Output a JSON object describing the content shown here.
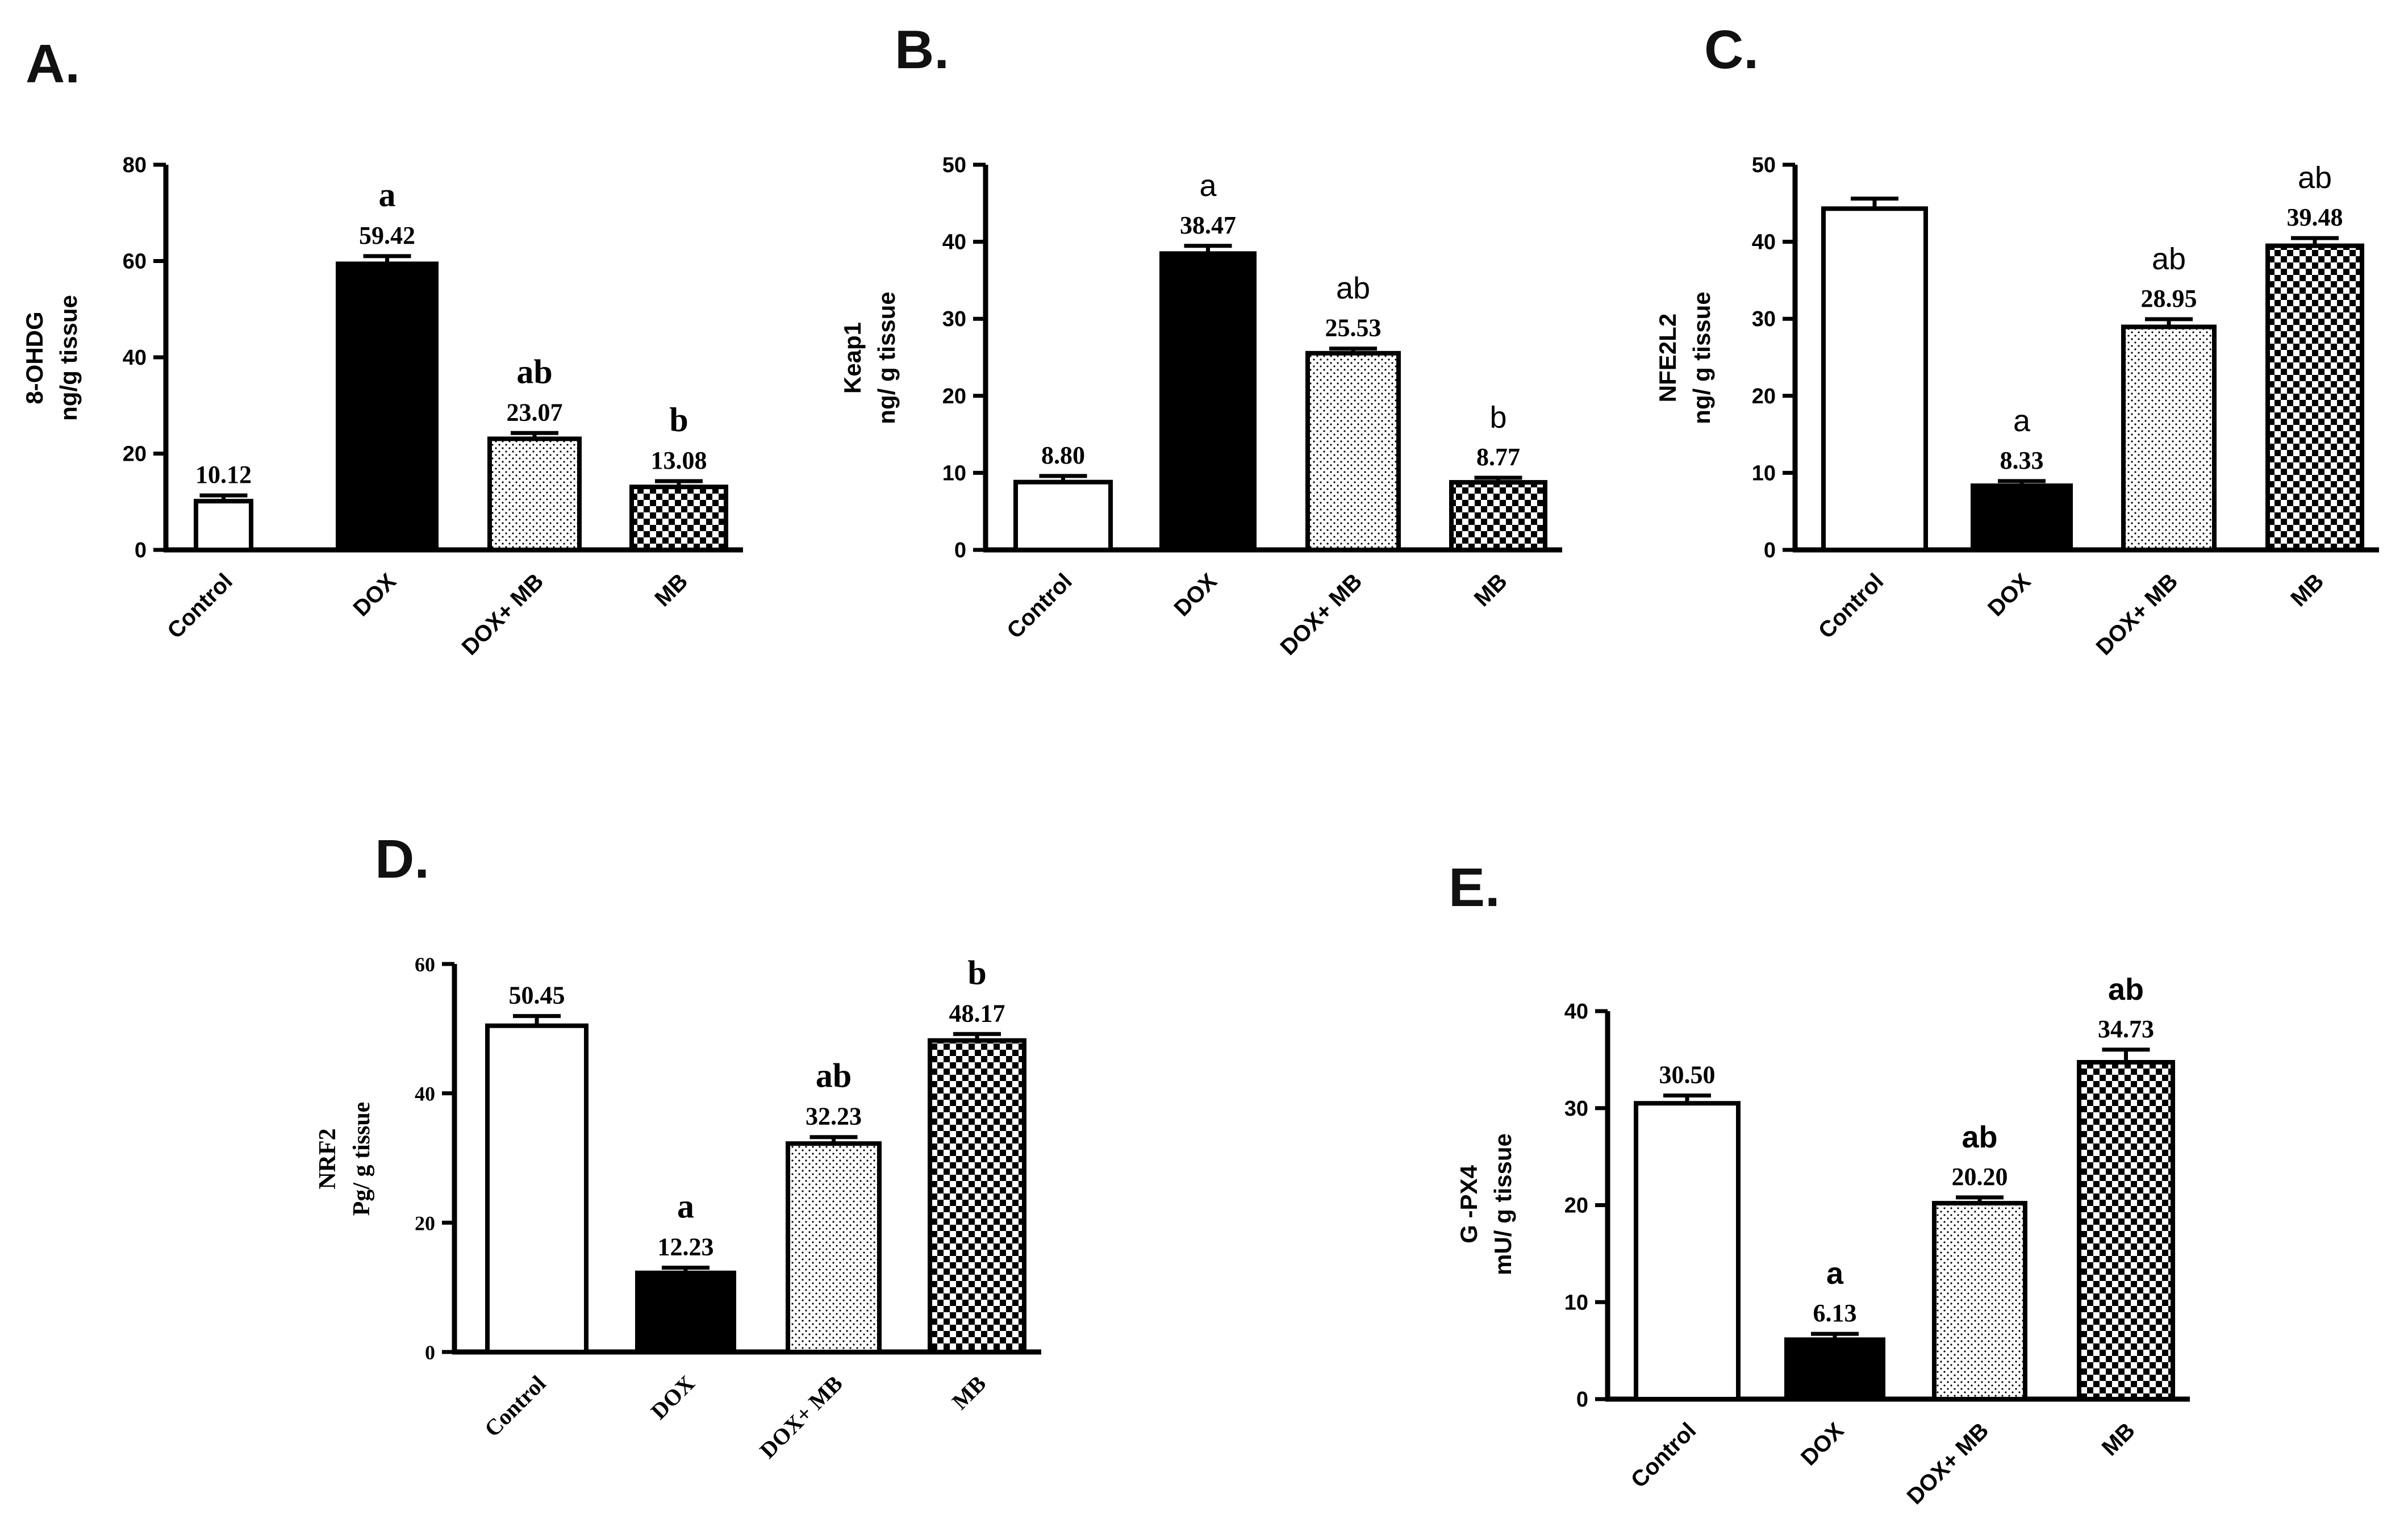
{
  "figure": {
    "colors": {
      "ink": "#000000",
      "background": "#ffffff"
    },
    "fills": {
      "Control": "white",
      "DOX": "black",
      "DOX+ MB": "dots",
      "MB": "checker"
    }
  },
  "chart_data": [
    {
      "panel": "A.",
      "type": "bar",
      "categories": [
        "Control",
        "DOX",
        "DOX+ MB",
        "MB"
      ],
      "values": [
        10.12,
        59.42,
        23.07,
        13.08
      ],
      "errors": [
        1.2,
        1.6,
        1.2,
        1.2
      ],
      "value_labels": [
        "10.12",
        "59.42",
        "23.07",
        "13.08"
      ],
      "sig_letters": [
        "",
        "a",
        "ab",
        "b"
      ],
      "ylabel": [
        "8-OHDG",
        "ng/g tissue"
      ],
      "ylim": [
        0,
        80
      ],
      "yticks": [
        0,
        20,
        40,
        60,
        80
      ],
      "xlabel": ""
    },
    {
      "panel": "B.",
      "type": "bar",
      "categories": [
        "Control",
        "DOX",
        "DOX+ MB",
        "MB"
      ],
      "values": [
        8.8,
        38.47,
        25.53,
        8.77
      ],
      "errors": [
        0.8,
        1.0,
        0.6,
        0.6
      ],
      "value_labels": [
        "8.80",
        "38.47",
        "25.53",
        "8.77"
      ],
      "sig_letters": [
        "",
        "a",
        "ab",
        "b"
      ],
      "ylabel": [
        "Keap1",
        "ng/ g tissue"
      ],
      "ylim": [
        0,
        50
      ],
      "yticks": [
        0,
        10,
        20,
        30,
        40,
        50
      ],
      "xlabel": ""
    },
    {
      "panel": "C.",
      "type": "bar",
      "categories": [
        "Control",
        "DOX",
        "DOX+ MB",
        "MB"
      ],
      "values": [
        44.3,
        8.33,
        28.95,
        39.48
      ],
      "errors": [
        1.3,
        0.6,
        1.0,
        1.0
      ],
      "value_labels": [
        "",
        "8.33",
        "28.95",
        "39.48"
      ],
      "sig_letters": [
        "",
        "a",
        "ab",
        "ab"
      ],
      "ylabel": [
        "NFE2L2",
        "ng/ g tissue"
      ],
      "ylim": [
        0,
        50
      ],
      "yticks": [
        0,
        10,
        20,
        30,
        40,
        50
      ],
      "xlabel": ""
    },
    {
      "panel": "D.",
      "type": "bar",
      "categories": [
        "Control",
        "DOX",
        "DOX+ MB",
        "MB"
      ],
      "values": [
        50.45,
        12.23,
        32.23,
        48.17
      ],
      "errors": [
        1.5,
        0.8,
        1.0,
        1.0
      ],
      "value_labels": [
        "50.45",
        "12.23",
        "32.23",
        "48.17"
      ],
      "sig_letters": [
        "",
        "a",
        "ab",
        "b"
      ],
      "ylabel": [
        "NRF2",
        "Pg/ g tissue"
      ],
      "ylim": [
        0,
        60
      ],
      "yticks": [
        0,
        20,
        40,
        60
      ],
      "xlabel": ""
    },
    {
      "panel": "E.",
      "type": "bar",
      "categories": [
        "Control",
        "DOX",
        "DOX+ MB",
        "MB"
      ],
      "values": [
        30.5,
        6.13,
        20.2,
        34.73
      ],
      "errors": [
        0.8,
        0.6,
        0.6,
        1.3
      ],
      "value_labels": [
        "30.50",
        "6.13",
        "20.20",
        "34.73"
      ],
      "sig_letters": [
        "",
        "a",
        "ab",
        "ab"
      ],
      "ylabel": [
        "G -PX4",
        "mU/ g tissue"
      ],
      "ylim": [
        0,
        40
      ],
      "yticks": [
        0,
        10,
        20,
        30,
        40
      ],
      "xlabel": ""
    }
  ]
}
